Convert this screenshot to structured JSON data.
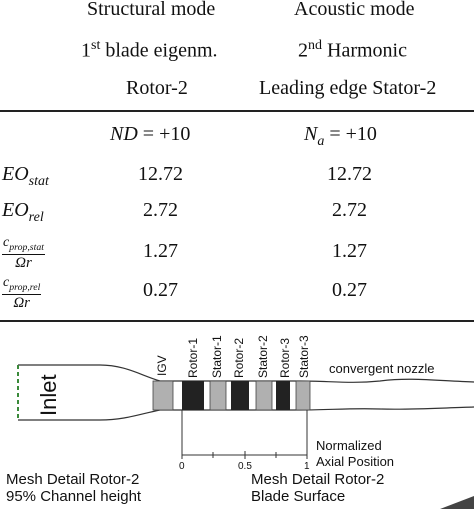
{
  "table": {
    "col1": {
      "row1": "Structural mode",
      "row2_sup": "st",
      "row2_rest": "blade eigenm.",
      "row3": "Rotor-2"
    },
    "col2": {
      "row1": "Acoustic mode",
      "row2_sup": "nd",
      "row2_rest": "Harmonic",
      "row3": "Leading edge Stator-2"
    },
    "mode_row": {
      "col1_var": "ND",
      "col1_val": "= +10",
      "col2_var": "N",
      "col2_sub": "a",
      "col2_val": "= +10"
    },
    "rows": [
      {
        "label_main": "EO",
        "label_sub": "stat",
        "col1": "12.72",
        "col2": "12.72"
      },
      {
        "label_main": "EO",
        "label_sub": "rel",
        "col1": "2.72",
        "col2": "2.72"
      },
      {
        "label_num_main": "c",
        "label_num_sub": "prop,stat",
        "label_den": "Ωr",
        "col1": "1.27",
        "col2": "1.27"
      },
      {
        "label_num_main": "c",
        "label_num_sub": "prop,rel",
        "label_den": "Ωr",
        "col1": "0.27",
        "col2": "0.27"
      }
    ]
  },
  "diagram": {
    "inlet": "Inlet",
    "igv": "IGV",
    "rotor1": "Rotor-1",
    "stator1": "Stator-1",
    "rotor2": "Rotor-2",
    "stator2": "Stator-2",
    "rotor3": "Rotor-3",
    "stator3": "Stator-3",
    "nozzle": "convergent nozzle",
    "axis_title_1": "Normalized",
    "axis_title_2": "Axial Position",
    "tick0": "0",
    "tick05": "0.5",
    "tick1": "1",
    "caption_left_1": "Mesh Detail Rotor-2",
    "caption_left_2": "95% Channel height",
    "caption_right_1": "Mesh Detail Rotor-2",
    "caption_right_2": "Blade Surface"
  }
}
